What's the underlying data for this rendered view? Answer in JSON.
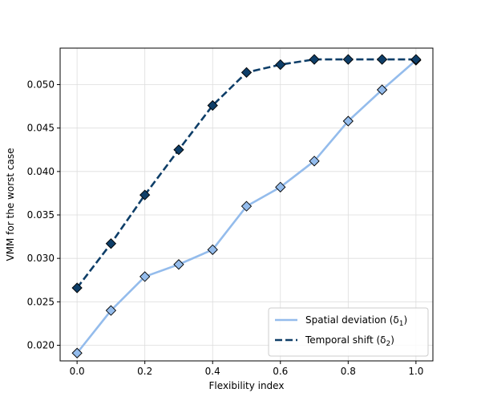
{
  "chart_data": {
    "type": "line",
    "xlabel": "Flexibility index",
    "ylabel": "VMM for the worst case",
    "xlim": [
      -0.05,
      1.05
    ],
    "ylim": [
      0.0182,
      0.0542
    ],
    "x_ticks": [
      0.0,
      0.2,
      0.4,
      0.6,
      0.8,
      1.0
    ],
    "x_tick_labels": [
      "0.0",
      "0.2",
      "0.4",
      "0.6",
      "0.8",
      "1.0"
    ],
    "y_ticks": [
      0.02,
      0.025,
      0.03,
      0.035,
      0.04,
      0.045,
      0.05
    ],
    "y_tick_labels": [
      "0.020",
      "0.025",
      "0.030",
      "0.035",
      "0.040",
      "0.045",
      "0.050"
    ],
    "grid": true,
    "legend_position": "lower-right",
    "x": [
      0.0,
      0.1,
      0.2,
      0.3,
      0.4,
      0.5,
      0.6,
      0.7,
      0.8,
      0.9,
      1.0
    ],
    "series": [
      {
        "name": "Spatial deviation (δ",
        "name_sub": "1",
        "name_close": ")",
        "values": [
          0.0191,
          0.024,
          0.0279,
          0.0293,
          0.031,
          0.036,
          0.0382,
          0.0412,
          0.0458,
          0.0494,
          0.0528
        ],
        "color": "#94bcec",
        "line_style": "solid",
        "marker": "diamond",
        "marker_fill": "#94bcec"
      },
      {
        "name": "Temporal shift (δ",
        "name_sub": "2",
        "name_close": ")",
        "values": [
          0.0266,
          0.0317,
          0.0373,
          0.0425,
          0.0476,
          0.0514,
          0.0523,
          0.0529,
          0.0529,
          0.0529,
          0.0529
        ],
        "color": "#0e3e68",
        "line_style": "dashed",
        "marker": "diamond",
        "marker_fill": "#0e3e68"
      }
    ]
  }
}
